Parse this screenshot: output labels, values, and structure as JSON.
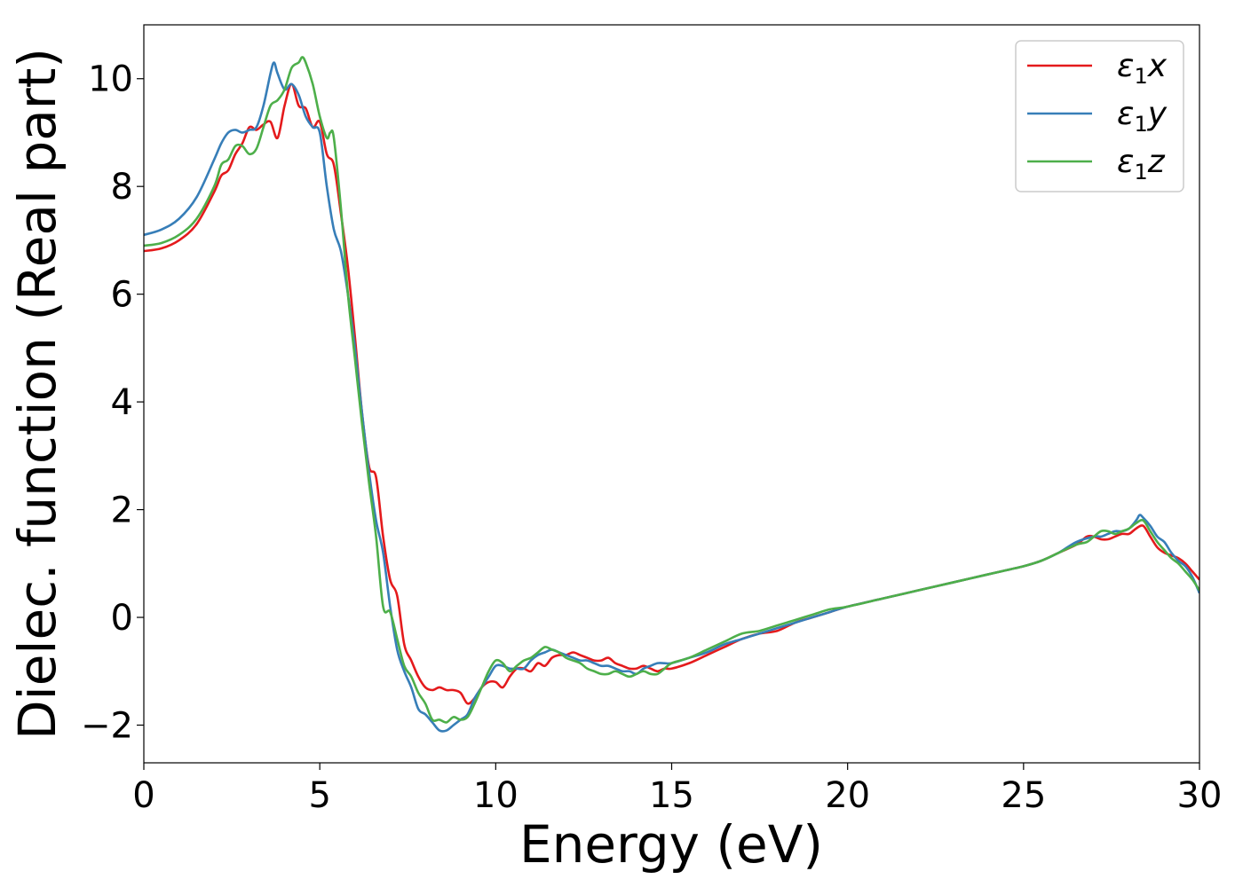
{
  "chart_data": {
    "type": "line",
    "title": "",
    "xlabel": "Energy (eV)",
    "ylabel": "Dielec. function (Real part)",
    "xlim": [
      0,
      30
    ],
    "ylim": [
      -2.7,
      11
    ],
    "xticks": [
      0,
      5,
      10,
      15,
      20,
      25,
      30
    ],
    "xtick_labels": [
      "0",
      "5",
      "10",
      "15",
      "20",
      "25",
      "30"
    ],
    "yticks": [
      -2,
      0,
      2,
      4,
      6,
      8,
      10
    ],
    "ytick_labels": [
      "−2",
      "0",
      "2",
      "4",
      "6",
      "8",
      "10"
    ],
    "grid": false,
    "legend_position": "top-right",
    "series": [
      {
        "name": "ε₁x",
        "legend_base": "ε",
        "legend_sub": "1",
        "legend_suffix": "x",
        "color": "#e41a1c",
        "x": [
          0,
          0.5,
          1.0,
          1.5,
          2.0,
          2.2,
          2.4,
          2.6,
          2.8,
          3.0,
          3.2,
          3.4,
          3.6,
          3.8,
          4.0,
          4.2,
          4.4,
          4.6,
          4.8,
          5.0,
          5.2,
          5.4,
          5.6,
          5.8,
          6.0,
          6.2,
          6.4,
          6.6,
          6.8,
          7.0,
          7.2,
          7.4,
          7.6,
          7.8,
          8.0,
          8.2,
          8.4,
          8.6,
          8.8,
          9.0,
          9.2,
          9.4,
          9.6,
          9.8,
          10.0,
          10.2,
          10.4,
          10.6,
          10.8,
          11.0,
          11.2,
          11.4,
          11.6,
          11.8,
          12.0,
          12.2,
          12.4,
          12.6,
          12.8,
          13.0,
          13.2,
          13.4,
          13.6,
          13.8,
          14.0,
          14.2,
          14.4,
          14.6,
          14.8,
          15.0,
          15.5,
          16.0,
          16.5,
          17.0,
          17.5,
          18.0,
          18.5,
          19.0,
          19.5,
          20.0,
          21.0,
          22.0,
          23.0,
          24.0,
          25.0,
          25.5,
          26.0,
          26.5,
          26.8,
          27.0,
          27.2,
          27.4,
          27.6,
          27.8,
          28.0,
          28.2,
          28.4,
          28.6,
          28.8,
          29.0,
          29.2,
          29.4,
          29.6,
          29.8,
          30.0
        ],
        "y": [
          6.8,
          6.85,
          7.0,
          7.3,
          7.9,
          8.2,
          8.3,
          8.6,
          8.8,
          9.1,
          9.05,
          9.15,
          9.2,
          8.9,
          9.5,
          9.9,
          9.5,
          9.45,
          9.1,
          9.2,
          8.6,
          8.4,
          7.5,
          6.5,
          5.2,
          3.8,
          2.8,
          2.6,
          1.5,
          0.7,
          0.4,
          -0.5,
          -0.8,
          -1.1,
          -1.3,
          -1.35,
          -1.3,
          -1.35,
          -1.35,
          -1.4,
          -1.6,
          -1.5,
          -1.3,
          -1.2,
          -1.2,
          -1.3,
          -1.1,
          -0.95,
          -0.95,
          -1.0,
          -0.85,
          -0.9,
          -0.75,
          -0.7,
          -0.7,
          -0.65,
          -0.7,
          -0.75,
          -0.8,
          -0.8,
          -0.75,
          -0.85,
          -0.9,
          -0.95,
          -0.95,
          -0.9,
          -0.95,
          -1.0,
          -0.95,
          -0.95,
          -0.85,
          -0.7,
          -0.55,
          -0.4,
          -0.3,
          -0.25,
          -0.1,
          0.0,
          0.1,
          0.2,
          0.35,
          0.5,
          0.65,
          0.8,
          0.95,
          1.05,
          1.2,
          1.35,
          1.5,
          1.5,
          1.45,
          1.45,
          1.5,
          1.55,
          1.55,
          1.65,
          1.7,
          1.5,
          1.3,
          1.2,
          1.15,
          1.1,
          1.0,
          0.85,
          0.7
        ]
      },
      {
        "name": "ε₁y",
        "legend_base": "ε",
        "legend_sub": "1",
        "legend_suffix": "y",
        "color": "#377eb8",
        "x": [
          0,
          0.5,
          1.0,
          1.5,
          2.0,
          2.2,
          2.4,
          2.6,
          2.8,
          3.0,
          3.2,
          3.4,
          3.6,
          3.7,
          3.8,
          4.0,
          4.2,
          4.4,
          4.6,
          4.8,
          5.0,
          5.2,
          5.4,
          5.6,
          5.8,
          6.0,
          6.2,
          6.4,
          6.6,
          6.8,
          7.0,
          7.2,
          7.4,
          7.6,
          7.8,
          8.0,
          8.2,
          8.4,
          8.6,
          8.8,
          9.0,
          9.2,
          9.4,
          9.6,
          9.8,
          10.0,
          10.2,
          10.4,
          10.6,
          10.8,
          11.0,
          11.2,
          11.4,
          11.6,
          11.8,
          12.0,
          12.2,
          12.4,
          12.6,
          12.8,
          13.0,
          13.2,
          13.4,
          13.6,
          13.8,
          14.0,
          14.2,
          14.4,
          14.6,
          14.8,
          15.0,
          15.5,
          16.0,
          16.5,
          17.0,
          17.5,
          18.0,
          18.5,
          19.0,
          19.5,
          20.0,
          21.0,
          22.0,
          23.0,
          24.0,
          25.0,
          25.5,
          26.0,
          26.5,
          27.0,
          27.2,
          27.4,
          27.6,
          27.8,
          28.0,
          28.2,
          28.3,
          28.4,
          28.6,
          28.8,
          29.0,
          29.2,
          29.4,
          29.6,
          29.8,
          30.0
        ],
        "y": [
          7.1,
          7.2,
          7.4,
          7.8,
          8.5,
          8.8,
          9.0,
          9.05,
          9.0,
          9.05,
          9.1,
          9.5,
          10.1,
          10.3,
          10.1,
          9.8,
          9.9,
          9.7,
          9.3,
          9.1,
          9.0,
          8.0,
          7.2,
          6.8,
          6.0,
          5.0,
          3.8,
          2.7,
          1.8,
          1.2,
          0.2,
          -0.6,
          -1.0,
          -1.3,
          -1.7,
          -1.8,
          -1.95,
          -2.1,
          -2.1,
          -2.0,
          -1.9,
          -1.8,
          -1.5,
          -1.3,
          -1.1,
          -0.9,
          -0.9,
          -0.95,
          -0.95,
          -0.95,
          -0.8,
          -0.7,
          -0.65,
          -0.6,
          -0.65,
          -0.7,
          -0.75,
          -0.8,
          -0.8,
          -0.85,
          -0.9,
          -0.9,
          -0.95,
          -1.0,
          -1.0,
          -1.05,
          -0.95,
          -0.9,
          -0.85,
          -0.85,
          -0.85,
          -0.75,
          -0.65,
          -0.5,
          -0.4,
          -0.3,
          -0.2,
          -0.1,
          0.0,
          0.1,
          0.2,
          0.35,
          0.5,
          0.65,
          0.8,
          0.95,
          1.05,
          1.2,
          1.4,
          1.5,
          1.5,
          1.55,
          1.6,
          1.6,
          1.65,
          1.8,
          1.9,
          1.85,
          1.7,
          1.5,
          1.4,
          1.2,
          1.05,
          0.95,
          0.75,
          0.45
        ]
      },
      {
        "name": "ε₁z",
        "legend_base": "ε",
        "legend_sub": "1",
        "legend_suffix": "z",
        "color": "#4daf4a",
        "x": [
          0,
          0.5,
          1.0,
          1.5,
          2.0,
          2.2,
          2.4,
          2.6,
          2.8,
          3.0,
          3.2,
          3.4,
          3.6,
          3.8,
          4.0,
          4.2,
          4.4,
          4.5,
          4.6,
          4.8,
          5.0,
          5.2,
          5.3,
          5.4,
          5.6,
          5.8,
          6.0,
          6.2,
          6.4,
          6.6,
          6.8,
          7.0,
          7.2,
          7.4,
          7.6,
          7.8,
          8.0,
          8.2,
          8.4,
          8.6,
          8.8,
          9.0,
          9.2,
          9.4,
          9.6,
          9.8,
          10.0,
          10.2,
          10.4,
          10.6,
          10.8,
          11.0,
          11.2,
          11.4,
          11.6,
          11.8,
          12.0,
          12.2,
          12.4,
          12.6,
          12.8,
          13.0,
          13.2,
          13.4,
          13.6,
          13.8,
          14.0,
          14.2,
          14.4,
          14.6,
          14.8,
          15.0,
          15.5,
          16.0,
          16.5,
          17.0,
          17.5,
          18.0,
          18.5,
          19.0,
          19.5,
          20.0,
          21.0,
          22.0,
          23.0,
          24.0,
          25.0,
          25.5,
          26.0,
          26.5,
          26.8,
          27.0,
          27.2,
          27.4,
          27.6,
          27.8,
          28.0,
          28.2,
          28.4,
          28.6,
          28.8,
          29.0,
          29.2,
          29.4,
          29.6,
          29.8,
          30.0
        ],
        "y": [
          6.9,
          6.95,
          7.1,
          7.4,
          8.0,
          8.4,
          8.5,
          8.75,
          8.75,
          8.6,
          8.7,
          9.1,
          9.5,
          9.6,
          9.8,
          10.2,
          10.3,
          10.4,
          10.3,
          9.9,
          9.3,
          8.9,
          9.0,
          8.9,
          7.6,
          6.0,
          4.8,
          3.6,
          2.5,
          1.5,
          0.2,
          0.1,
          -0.4,
          -0.9,
          -1.1,
          -1.4,
          -1.6,
          -1.9,
          -1.9,
          -1.95,
          -1.85,
          -1.9,
          -1.85,
          -1.6,
          -1.3,
          -1.0,
          -0.8,
          -0.85,
          -1.0,
          -0.9,
          -0.8,
          -0.75,
          -0.65,
          -0.55,
          -0.6,
          -0.65,
          -0.75,
          -0.8,
          -0.85,
          -0.95,
          -1.0,
          -1.05,
          -1.05,
          -1.0,
          -1.05,
          -1.1,
          -1.05,
          -1.0,
          -1.05,
          -1.05,
          -0.95,
          -0.85,
          -0.75,
          -0.6,
          -0.45,
          -0.3,
          -0.25,
          -0.15,
          -0.05,
          0.05,
          0.15,
          0.2,
          0.35,
          0.5,
          0.65,
          0.8,
          0.95,
          1.05,
          1.2,
          1.35,
          1.4,
          1.5,
          1.6,
          1.6,
          1.55,
          1.6,
          1.65,
          1.75,
          1.8,
          1.6,
          1.4,
          1.25,
          1.1,
          1.0,
          0.85,
          0.7,
          0.5
        ]
      }
    ]
  }
}
